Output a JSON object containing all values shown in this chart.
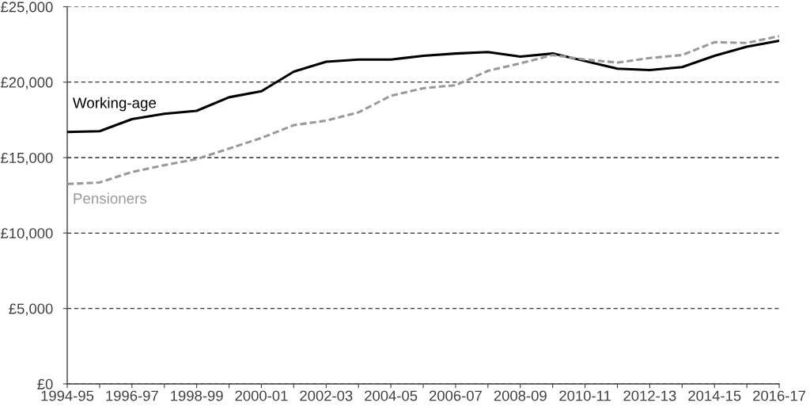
{
  "chart_data": {
    "type": "line",
    "categories": [
      "1994-95",
      null,
      "1996-97",
      null,
      "1998-99",
      null,
      "2000-01",
      null,
      "2002-03",
      null,
      "2004-05",
      null,
      "2006-07",
      null,
      "2008-09",
      null,
      "2010-11",
      null,
      "2012-13",
      null,
      "2014-15",
      null,
      "2016-17"
    ],
    "series": [
      {
        "name": "Working-age",
        "color": "#000000",
        "line_style": "solid",
        "values": [
          16700,
          16750,
          17550,
          17900,
          18100,
          19000,
          19400,
          20700,
          21350,
          21500,
          21500,
          21750,
          21900,
          22000,
          21700,
          21900,
          21400,
          20900,
          20800,
          21000,
          21750,
          22350,
          22750
        ]
      },
      {
        "name": "Pensioners",
        "color": "#999999",
        "line_style": "dashed",
        "values": [
          13250,
          13350,
          14050,
          14500,
          14900,
          15600,
          16300,
          17150,
          17450,
          18000,
          19100,
          19600,
          19800,
          20750,
          21250,
          21800,
          21500,
          21300,
          21600,
          21800,
          22650,
          22600,
          23050
        ]
      }
    ],
    "ylim": [
      0,
      25000
    ],
    "yticks": [
      {
        "value": 0,
        "label": "£0"
      },
      {
        "value": 5000,
        "label": "£5,000"
      },
      {
        "value": 10000,
        "label": "£10,000"
      },
      {
        "value": 15000,
        "label": "£15,000"
      },
      {
        "value": 20000,
        "label": "£20,000"
      },
      {
        "value": 25000,
        "label": "£25,000"
      }
    ],
    "grid": "y"
  }
}
